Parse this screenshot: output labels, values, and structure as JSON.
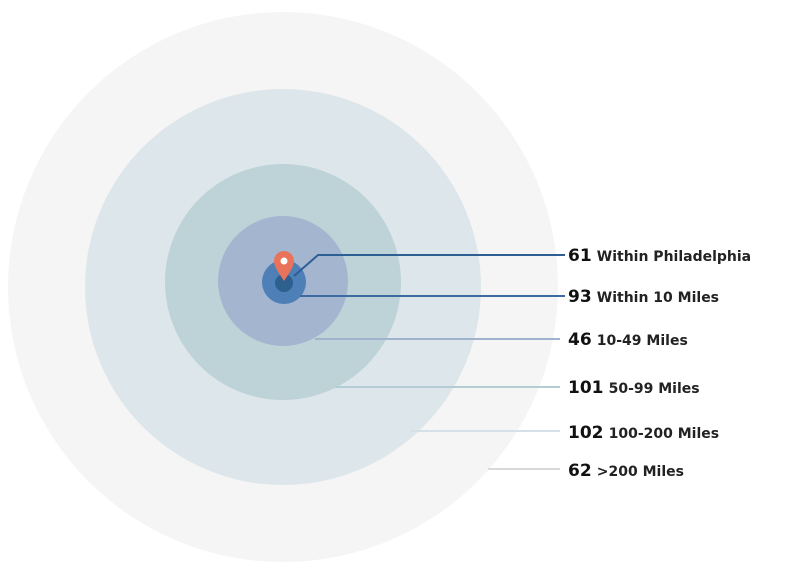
{
  "rings": [
    {
      "count": "61",
      "label": "Within Philadelphia"
    },
    {
      "count": "93",
      "label": "Within 10 Miles"
    },
    {
      "count": "46",
      "label": "10-49 Miles"
    },
    {
      "count": "101",
      "label": "50-99 Miles"
    },
    {
      "count": "102",
      "label": "100-200 Miles"
    },
    {
      "count": "62",
      "label": ">200 Miles"
    }
  ]
}
